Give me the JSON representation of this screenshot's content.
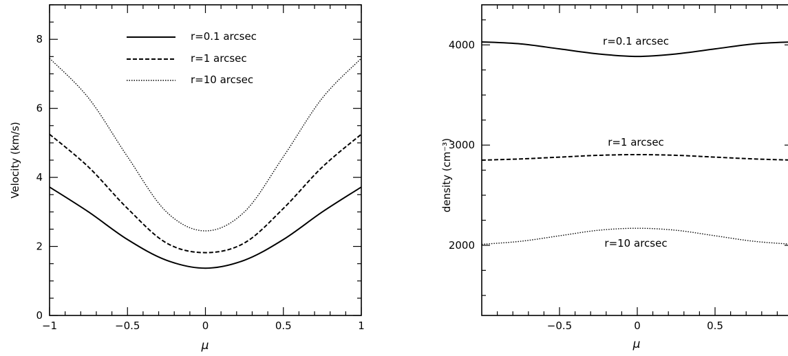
{
  "chart_data": [
    {
      "type": "line",
      "title": "",
      "xlabel": "μ",
      "ylabel": "Velocity (km/s)",
      "xlim": [
        -1,
        1
      ],
      "ylim": [
        0,
        9
      ],
      "x_ticks": [
        -1,
        -0.5,
        0,
        0.5,
        1
      ],
      "x_tick_labels": [
        "−1",
        "−0.5",
        "0",
        "0.5",
        "1"
      ],
      "y_ticks": [
        0,
        2,
        4,
        6,
        8
      ],
      "y_tick_labels": [
        "0",
        "2",
        "4",
        "6",
        "8"
      ],
      "grid": false,
      "legend": "top-right",
      "legend_entries": [
        "r=0.1 arcsec",
        "r=1 arcsec",
        "r=10 arcsec"
      ],
      "x": [
        -1,
        -0.75,
        -0.5,
        -0.25,
        0,
        0.25,
        0.5,
        0.75,
        1
      ],
      "series": [
        {
          "name": "r=0.1 arcsec",
          "style": "solid",
          "values": [
            3.72,
            3.0,
            2.2,
            1.6,
            1.37,
            1.6,
            2.2,
            3.0,
            3.72
          ]
        },
        {
          "name": "r=1 arcsec",
          "style": "dashed",
          "values": [
            5.25,
            4.3,
            3.1,
            2.1,
            1.82,
            2.1,
            3.1,
            4.3,
            5.25
          ]
        },
        {
          "name": "r=10 arcsec",
          "style": "dotted",
          "values": [
            7.45,
            6.3,
            4.6,
            3.0,
            2.45,
            3.0,
            4.6,
            6.3,
            7.45
          ]
        }
      ]
    },
    {
      "type": "line",
      "title": "",
      "xlabel": "μ",
      "ylabel": "density (cm⁻³)",
      "xlim": [
        -1,
        1
      ],
      "ylim": [
        1300,
        4400
      ],
      "x_ticks": [
        -0.5,
        0,
        0.5
      ],
      "x_tick_labels": [
        "−0.5",
        "0",
        "0.5"
      ],
      "y_ticks": [
        2000,
        3000,
        4000
      ],
      "y_tick_labels": [
        "2000",
        "3000",
        "4000"
      ],
      "grid": false,
      "x": [
        -1,
        -0.75,
        -0.5,
        -0.25,
        0,
        0.25,
        0.5,
        0.75,
        1
      ],
      "series": [
        {
          "name": "r=0.1 arcsec",
          "style": "solid",
          "values": [
            4030,
            4010,
            3960,
            3910,
            3885,
            3910,
            3960,
            4010,
            4030
          ]
        },
        {
          "name": "r=1 arcsec",
          "style": "dashed",
          "values": [
            2850,
            2862,
            2880,
            2898,
            2905,
            2898,
            2880,
            2862,
            2850
          ]
        },
        {
          "name": "r=10 arcsec",
          "style": "dotted",
          "values": [
            2010,
            2040,
            2095,
            2150,
            2170,
            2150,
            2095,
            2040,
            2010
          ]
        }
      ],
      "annotations": [
        "r=0.1 arcsec",
        "r=1 arcsec",
        "r=10 arcsec"
      ]
    }
  ]
}
